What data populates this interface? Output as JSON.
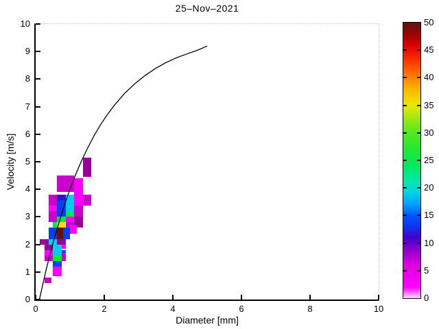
{
  "chart_data": {
    "type": "heatmap",
    "title": "25–Nov–2021",
    "xlabel": "Diameter [mm]",
    "ylabel": "Velocity [m/s]",
    "xlim": [
      0,
      10
    ],
    "ylim": [
      0,
      10
    ],
    "xticks": [
      0,
      2,
      4,
      6,
      8,
      10
    ],
    "yticks": [
      0,
      1,
      2,
      3,
      4,
      5,
      6,
      7,
      8,
      9,
      10
    ],
    "grid": false,
    "palette": {
      "purple": "#990099",
      "magenta": "#cc00cc",
      "brightmagenta": "#ff00ff",
      "darkblue": "#3311cc",
      "blue": "#0040ee",
      "cyan": "#00ccee",
      "green": "#00e844",
      "yellow": "#f0e000",
      "maroon": "#6b0f00"
    },
    "cells": [
      {
        "d0": 1.375,
        "d1": 1.625,
        "v0": 4.45,
        "v1": 5.15,
        "c": "purple",
        "value": 8
      },
      {
        "d0": 0.625,
        "d1": 1.125,
        "v0": 3.9,
        "v1": 4.5,
        "c": "magenta",
        "value": 5
      },
      {
        "d0": 1.125,
        "d1": 1.375,
        "v0": 3.4,
        "v1": 4.4,
        "c": "brightmagenta",
        "value": 3
      },
      {
        "d0": 1.375,
        "d1": 1.625,
        "v0": 3.4,
        "v1": 3.8,
        "c": "magenta",
        "value": 5
      },
      {
        "d0": 0.375,
        "d1": 0.625,
        "v0": 3.4,
        "v1": 3.8,
        "c": "magenta",
        "value": 5
      },
      {
        "d0": 0.625,
        "d1": 0.875,
        "v0": 3.6,
        "v1": 3.8,
        "c": "darkblue",
        "value": 11
      },
      {
        "d0": 0.875,
        "d1": 1.125,
        "v0": 3.4,
        "v1": 3.8,
        "c": "cyan",
        "value": 18
      },
      {
        "d0": 0.625,
        "d1": 0.875,
        "v0": 3.2,
        "v1": 3.6,
        "c": "blue",
        "value": 15
      },
      {
        "d0": 0.375,
        "d1": 0.625,
        "v0": 3.2,
        "v1": 3.4,
        "c": "brightmagenta",
        "value": 3
      },
      {
        "d0": 0.875,
        "d1": 1.125,
        "v0": 3.2,
        "v1": 3.4,
        "c": "cyan",
        "value": 18
      },
      {
        "d0": 0.375,
        "d1": 0.625,
        "v0": 3.0,
        "v1": 3.2,
        "c": "magenta",
        "value": 5
      },
      {
        "d0": 0.625,
        "d1": 0.875,
        "v0": 3.0,
        "v1": 3.2,
        "c": "blue",
        "value": 15
      },
      {
        "d0": 0.875,
        "d1": 1.125,
        "v0": 3.0,
        "v1": 3.2,
        "c": "green",
        "value": 25
      },
      {
        "d0": 1.125,
        "d1": 1.375,
        "v0": 3.0,
        "v1": 3.4,
        "c": "magenta",
        "value": 5
      },
      {
        "d0": 0.375,
        "d1": 0.625,
        "v0": 2.8,
        "v1": 3.0,
        "c": "magenta",
        "value": 5
      },
      {
        "d0": 0.625,
        "d1": 0.875,
        "v0": 2.8,
        "v1": 3.0,
        "c": "green",
        "value": 25
      },
      {
        "d0": 0.875,
        "d1": 1.125,
        "v0": 2.8,
        "v1": 3.0,
        "c": "brightmagenta",
        "value": 3
      },
      {
        "d0": 1.125,
        "d1": 1.375,
        "v0": 2.6,
        "v1": 3.0,
        "c": "purple",
        "value": 8
      },
      {
        "d0": 0.5,
        "d1": 0.625,
        "v0": 2.6,
        "v1": 2.8,
        "c": "green",
        "value": 25
      },
      {
        "d0": 0.625,
        "d1": 0.85,
        "v0": 2.55,
        "v1": 2.8,
        "c": "yellow",
        "value": 35
      },
      {
        "d0": 0.875,
        "d1": 1.125,
        "v0": 2.6,
        "v1": 2.8,
        "c": "magenta",
        "value": 5
      },
      {
        "d0": 1.0,
        "d1": 1.2,
        "v0": 2.4,
        "v1": 2.7,
        "c": "brightmagenta",
        "value": 3
      },
      {
        "d0": 0.375,
        "d1": 0.625,
        "v0": 2.2,
        "v1": 2.6,
        "c": "blue",
        "value": 15
      },
      {
        "d0": 0.625,
        "d1": 0.8,
        "v0": 2.2,
        "v1": 2.6,
        "c": "maroon",
        "value": 48
      },
      {
        "d0": 0.8,
        "d1": 1.0,
        "v0": 2.2,
        "v1": 2.6,
        "c": "blue",
        "value": 15
      },
      {
        "d0": 0.125,
        "d1": 0.375,
        "v0": 2.0,
        "v1": 2.2,
        "c": "purple",
        "value": 8
      },
      {
        "d0": 0.375,
        "d1": 0.625,
        "v0": 2.0,
        "v1": 2.2,
        "c": "cyan",
        "value": 18
      },
      {
        "d0": 0.625,
        "d1": 0.875,
        "v0": 2.0,
        "v1": 2.2,
        "c": "purple",
        "value": 8
      },
      {
        "d0": 0.25,
        "d1": 0.5,
        "v0": 1.8,
        "v1": 2.0,
        "c": "purple",
        "value": 8
      },
      {
        "d0": 0.5,
        "d1": 0.75,
        "v0": 1.8,
        "v1": 2.0,
        "c": "cyan",
        "value": 18
      },
      {
        "d0": 0.75,
        "d1": 0.875,
        "v0": 1.85,
        "v1": 2.0,
        "c": "brightmagenta",
        "value": 3
      },
      {
        "d0": 0.25,
        "d1": 0.5,
        "v0": 1.6,
        "v1": 1.8,
        "c": "brightmagenta",
        "value": 3
      },
      {
        "d0": 0.5,
        "d1": 0.75,
        "v0": 1.6,
        "v1": 1.8,
        "c": "cyan",
        "value": 18
      },
      {
        "d0": 0.75,
        "d1": 0.875,
        "v0": 1.6,
        "v1": 1.8,
        "c": "blue",
        "value": 15
      },
      {
        "d0": 0.25,
        "d1": 0.5,
        "v0": 1.4,
        "v1": 1.6,
        "c": "magenta",
        "value": 5
      },
      {
        "d0": 0.5,
        "d1": 0.75,
        "v0": 1.4,
        "v1": 1.6,
        "c": "green",
        "value": 25
      },
      {
        "d0": 0.75,
        "d1": 0.875,
        "v0": 1.4,
        "v1": 1.7,
        "c": "magenta",
        "value": 5
      },
      {
        "d0": 0.5,
        "d1": 0.75,
        "v0": 1.2,
        "v1": 1.4,
        "c": "blue",
        "value": 15
      },
      {
        "d0": 0.5,
        "d1": 0.75,
        "v0": 0.85,
        "v1": 1.2,
        "c": "brightmagenta",
        "value": 3
      },
      {
        "d0": 0.25,
        "d1": 0.45,
        "v0": 0.6,
        "v1": 0.8,
        "c": "magenta",
        "value": 5
      }
    ],
    "curve": {
      "name": "terminal-velocity-curve",
      "points": [
        [
          0.11,
          0
        ],
        [
          0.2,
          0.51
        ],
        [
          0.3,
          1.05
        ],
        [
          0.4,
          1.55
        ],
        [
          0.5,
          2.02
        ],
        [
          0.6,
          2.46
        ],
        [
          0.7,
          2.88
        ],
        [
          0.8,
          3.28
        ],
        [
          0.9,
          3.65
        ],
        [
          1.0,
          4.0
        ],
        [
          1.1,
          4.33
        ],
        [
          1.2,
          4.64
        ],
        [
          1.35,
          5.07
        ],
        [
          1.5,
          5.46
        ],
        [
          1.7,
          5.94
        ],
        [
          1.9,
          6.36
        ],
        [
          2.1,
          6.73
        ],
        [
          2.3,
          7.06
        ],
        [
          2.6,
          7.49
        ],
        [
          2.9,
          7.84
        ],
        [
          3.2,
          8.14
        ],
        [
          3.5,
          8.39
        ],
        [
          3.8,
          8.6
        ],
        [
          4.1,
          8.77
        ],
        [
          4.4,
          8.91
        ],
        [
          4.7,
          9.04
        ],
        [
          5.0,
          9.2
        ]
      ]
    },
    "colorbar": {
      "range": [
        0,
        50
      ],
      "ticks": [
        0,
        5,
        10,
        15,
        20,
        25,
        30,
        35,
        40,
        45,
        50
      ],
      "legend_position": "right",
      "stops": [
        {
          "v": 0,
          "c": "#ffd8ff"
        },
        {
          "v": 2,
          "c": "#ff00ff"
        },
        {
          "v": 6,
          "c": "#dd00dd"
        },
        {
          "v": 9,
          "c": "#8800cc"
        },
        {
          "v": 11,
          "c": "#4400cc"
        },
        {
          "v": 13,
          "c": "#1133ee"
        },
        {
          "v": 15,
          "c": "#0055ff"
        },
        {
          "v": 17,
          "c": "#00a0ff"
        },
        {
          "v": 19,
          "c": "#00d0e8"
        },
        {
          "v": 21,
          "c": "#00e8b0"
        },
        {
          "v": 24,
          "c": "#00e860"
        },
        {
          "v": 27,
          "c": "#22e832"
        },
        {
          "v": 30,
          "c": "#55e820"
        },
        {
          "v": 33,
          "c": "#aae810"
        },
        {
          "v": 35,
          "c": "#e8e800"
        },
        {
          "v": 38,
          "c": "#ffb400"
        },
        {
          "v": 41,
          "c": "#ff6a00"
        },
        {
          "v": 44,
          "c": "#f52000"
        },
        {
          "v": 46,
          "c": "#d80000"
        },
        {
          "v": 48,
          "c": "#990505"
        },
        {
          "v": 50,
          "c": "#5a1414"
        }
      ]
    }
  }
}
